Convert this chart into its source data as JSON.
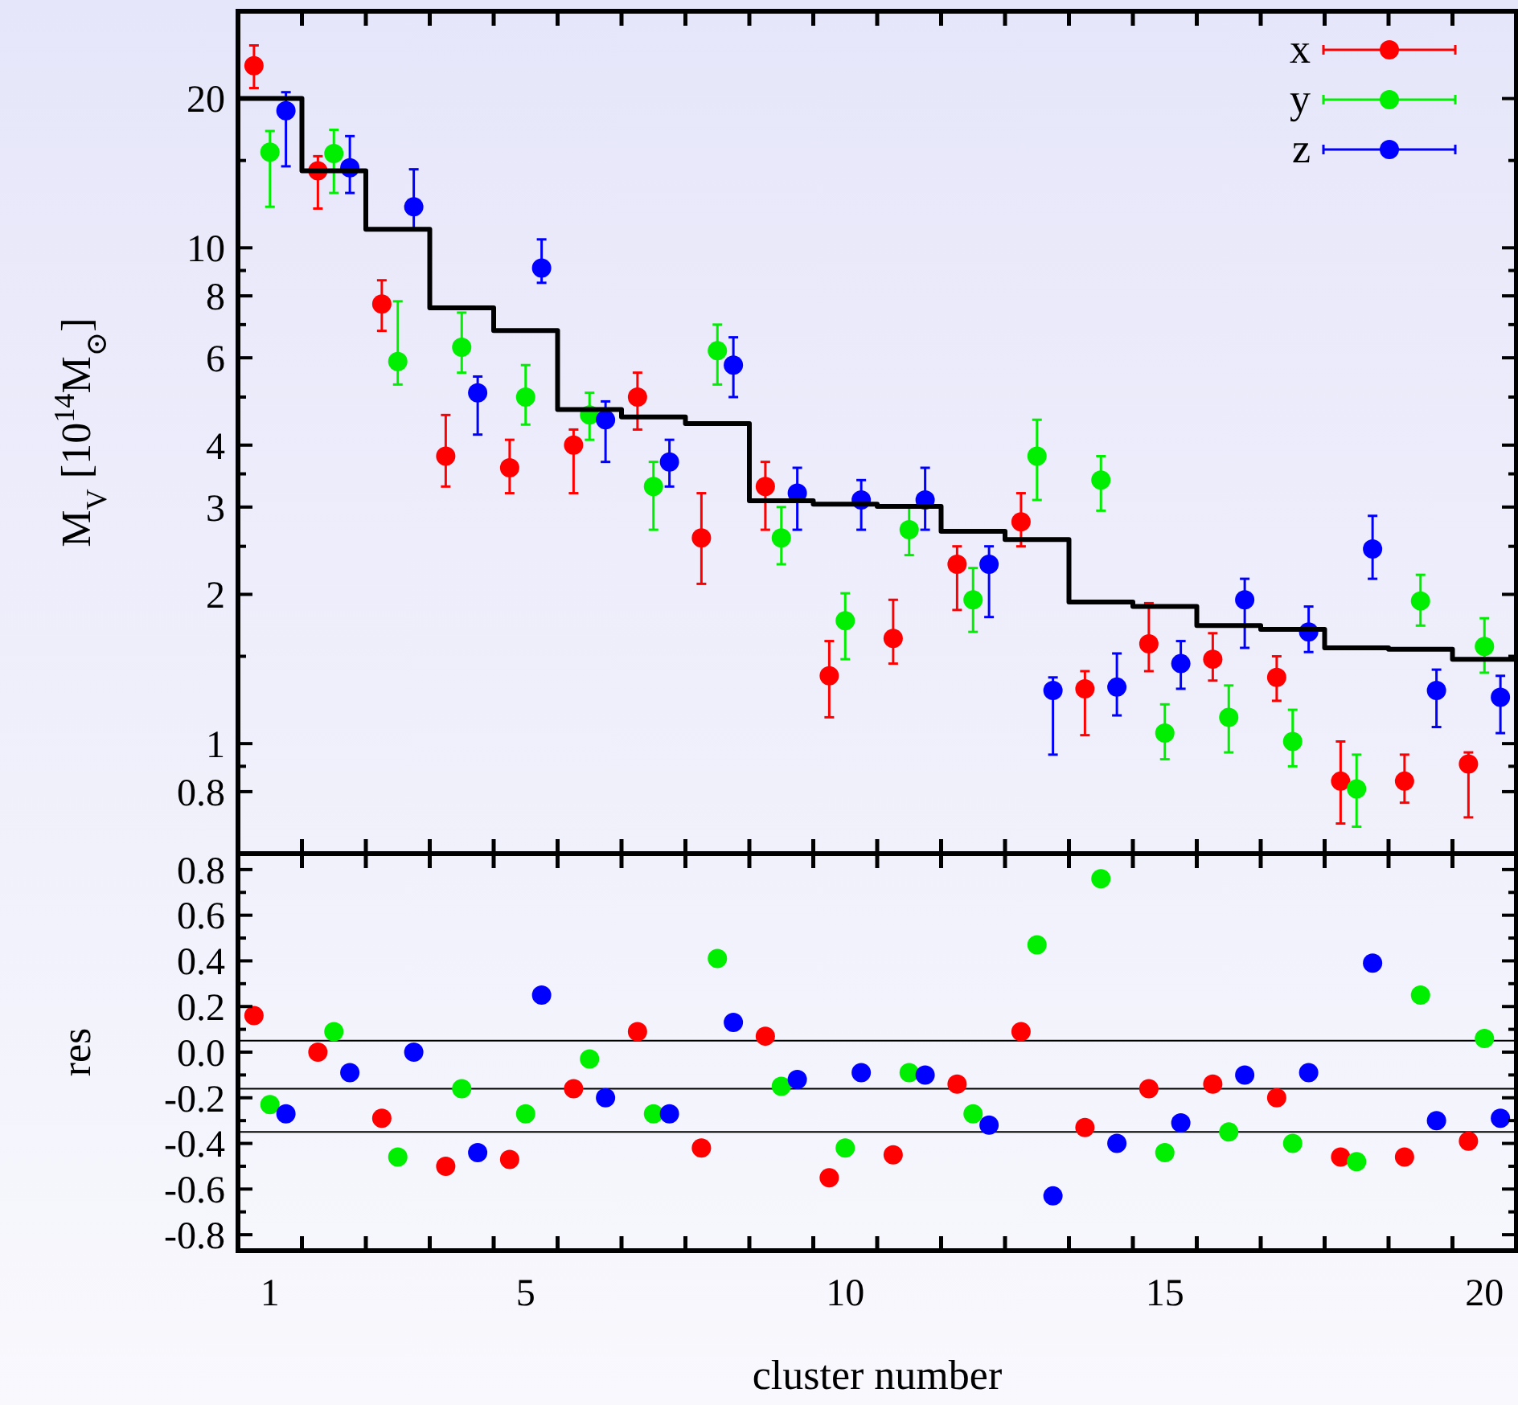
{
  "chart_data": [
    {
      "type": "scatter",
      "ylabel": "M$_{V}$ [10$^{14}$M$_{⊙}$]",
      "log": true,
      "legend": "top right",
      "marker": "circle",
      "tick_labels": "y",
      "xlim": [
        0.5,
        20.5
      ],
      "xticks": [
        {
          "value": 1.5,
          "label": null
        },
        {
          "value": 2.5,
          "label": null
        },
        {
          "value": 3.5,
          "label": null
        },
        {
          "value": 4.5,
          "label": null
        },
        {
          "value": 5.5,
          "label": null
        },
        {
          "value": 6.5,
          "label": null
        },
        {
          "value": 7.5,
          "label": null
        },
        {
          "value": 8.5,
          "label": null
        },
        {
          "value": 9.5,
          "label": null
        },
        {
          "value": 10.5,
          "label": null
        },
        {
          "value": 11.5,
          "label": null
        },
        {
          "value": 12.5,
          "label": null
        },
        {
          "value": 13.5,
          "label": null
        },
        {
          "value": 14.5,
          "label": null
        },
        {
          "value": 15.5,
          "label": null
        },
        {
          "value": 16.5,
          "label": null
        },
        {
          "value": 17.5,
          "label": null
        },
        {
          "value": 18.5,
          "label": null
        },
        {
          "value": 19.5,
          "label": null
        }
      ],
      "ylim": [
        0.6,
        30
      ],
      "yticks": [
        0.8,
        {
          "value": 0.9,
          "label": null
        },
        1,
        {
          "value": 1.5,
          "label": null
        },
        2,
        {
          "value": 2.5,
          "label": null
        },
        3,
        {
          "value": 3.5,
          "label": null
        },
        4,
        {
          "value": 5,
          "label": null
        },
        6,
        {
          "value": 7,
          "label": null
        },
        8,
        {
          "value": 9,
          "label": null
        },
        10,
        {
          "value": 15,
          "label": null
        },
        20
      ],
      "series": [
        {
          "name": "x",
          "color": "#ff0000",
          "x": [
            0.75,
            1.75,
            2.75,
            3.75,
            4.75,
            5.75,
            6.75,
            7.75,
            8.75,
            9.75,
            10.75,
            11.75,
            12.75,
            13.75,
            14.75,
            15.75,
            16.75,
            17.75,
            18.75,
            19.75
          ],
          "values": [
            23.3,
            14.3,
            7.7,
            3.8,
            3.6,
            4.0,
            5.0,
            2.6,
            3.3,
            1.37,
            1.63,
            2.3,
            2.8,
            1.29,
            1.59,
            1.48,
            1.36,
            0.84,
            0.84,
            0.91
          ],
          "errors": [
            [
              21.0,
              25.6
            ],
            [
              12.0,
              15.3
            ],
            [
              6.8,
              8.6
            ],
            [
              3.3,
              4.6
            ],
            [
              3.2,
              4.1
            ],
            [
              3.2,
              4.3
            ],
            [
              4.3,
              5.6
            ],
            [
              2.1,
              3.2
            ],
            [
              2.7,
              3.7
            ],
            [
              1.13,
              1.61
            ],
            [
              1.45,
              1.95
            ],
            [
              1.86,
              2.5
            ],
            [
              2.5,
              3.2
            ],
            [
              1.04,
              1.4
            ],
            [
              1.4,
              1.92
            ],
            [
              1.34,
              1.67
            ],
            [
              1.22,
              1.5
            ],
            [
              0.69,
              1.01
            ],
            [
              0.76,
              0.95
            ],
            [
              0.71,
              0.96
            ]
          ]
        },
        {
          "name": "y",
          "color": "#00ee00",
          "x": [
            1,
            2,
            3,
            4,
            5,
            6,
            7,
            8,
            9,
            10,
            11,
            12,
            13,
            14,
            15,
            16,
            17,
            18,
            19,
            20
          ],
          "values": [
            15.6,
            15.5,
            5.9,
            6.3,
            5.0,
            4.6,
            3.3,
            6.2,
            2.6,
            1.77,
            2.7,
            1.95,
            3.8,
            3.4,
            1.05,
            1.13,
            1.01,
            0.81,
            1.94,
            1.57
          ],
          "errors": [
            [
              12.1,
              17.2
            ],
            [
              12.9,
              17.3
            ],
            [
              5.3,
              7.8
            ],
            [
              5.6,
              7.4
            ],
            [
              4.4,
              5.8
            ],
            [
              4.1,
              5.1
            ],
            [
              2.7,
              3.7
            ],
            [
              5.3,
              7.0
            ],
            [
              2.3,
              3.0
            ],
            [
              1.48,
              2.01
            ],
            [
              2.4,
              3.0
            ],
            [
              1.68,
              2.26
            ],
            [
              3.1,
              4.5
            ],
            [
              2.95,
              3.8
            ],
            [
              0.93,
              1.2
            ],
            [
              0.96,
              1.31
            ],
            [
              0.9,
              1.17
            ],
            [
              0.68,
              0.95
            ],
            [
              1.73,
              2.19
            ],
            [
              1.39,
              1.79
            ]
          ]
        },
        {
          "name": "z",
          "color": "#0000ff",
          "x": [
            1.25,
            2.25,
            3.25,
            4.25,
            5.25,
            6.25,
            7.25,
            8.25,
            9.25,
            10.25,
            11.25,
            12.25,
            13.25,
            14.25,
            15.25,
            16.25,
            17.25,
            18.25,
            19.25,
            20.25
          ],
          "values": [
            18.9,
            14.5,
            12.1,
            5.1,
            9.1,
            4.5,
            3.7,
            5.8,
            3.2,
            3.1,
            3.1,
            2.3,
            1.28,
            1.3,
            1.45,
            1.95,
            1.68,
            2.47,
            1.28,
            1.24
          ],
          "errors": [
            [
              14.6,
              20.6
            ],
            [
              12.9,
              16.8
            ],
            [
              10.9,
              14.4
            ],
            [
              4.2,
              5.5
            ],
            [
              8.5,
              10.4
            ],
            [
              3.7,
              4.9
            ],
            [
              3.3,
              4.1
            ],
            [
              5.0,
              6.6
            ],
            [
              2.7,
              3.6
            ],
            [
              2.7,
              3.4
            ],
            [
              2.7,
              3.6
            ],
            [
              1.8,
              2.5
            ],
            [
              0.95,
              1.36
            ],
            [
              1.14,
              1.52
            ],
            [
              1.29,
              1.61
            ],
            [
              1.56,
              2.15
            ],
            [
              1.53,
              1.89
            ],
            [
              2.15,
              2.88
            ],
            [
              1.08,
              1.41
            ],
            [
              1.05,
              1.37
            ]
          ]
        },
        {
          "type": "step",
          "color": "#000000",
          "marker": "none",
          "x": [
            0.5,
            1.5,
            2.5,
            3.5,
            4.5,
            5.5,
            6.5,
            7.5,
            8.5,
            9.5,
            10.5,
            11.5,
            12.5,
            13.5,
            14.5,
            15.5,
            16.5,
            17.5,
            18.5,
            19.5,
            20.5
          ],
          "values": [
            20.0,
            14.3,
            10.9,
            7.57,
            6.81,
            4.72,
            4.56,
            4.42,
            3.09,
            3.04,
            3.01,
            2.68,
            2.58,
            1.93,
            1.89,
            1.73,
            1.7,
            1.56,
            1.55,
            1.48,
            1.48
          ]
        }
      ]
    },
    {
      "type": "scatter",
      "xlabel": "cluster number",
      "ylabel": "res",
      "marker": "circle",
      "xlim": [
        0.5,
        20.5
      ],
      "xticks": [
        1,
        {
          "value": 1.5,
          "label": null
        },
        {
          "value": 2.5,
          "label": null
        },
        {
          "value": 3.5,
          "label": null
        },
        {
          "value": 4.5,
          "label": null
        },
        5,
        {
          "value": 5.5,
          "label": null
        },
        {
          "value": 6.5,
          "label": null
        },
        {
          "value": 7.5,
          "label": null
        },
        {
          "value": 8.5,
          "label": null
        },
        {
          "value": 9.5,
          "label": null
        },
        10,
        {
          "value": 10.5,
          "label": null
        },
        {
          "value": 11.5,
          "label": null
        },
        {
          "value": 12.5,
          "label": null
        },
        {
          "value": 13.5,
          "label": null
        },
        {
          "value": 14.5,
          "label": null
        },
        15,
        {
          "value": 15.5,
          "label": null
        },
        {
          "value": 16.5,
          "label": null
        },
        {
          "value": 17.5,
          "label": null
        },
        {
          "value": 18.5,
          "label": null
        },
        {
          "value": 19.5,
          "label": null
        },
        20
      ],
      "ylim": [
        -0.87,
        0.87
      ],
      "yticks": [
        -0.8,
        {
          "value": -0.7,
          "label": null
        },
        -0.6,
        {
          "value": -0.5,
          "label": null
        },
        -0.4,
        {
          "value": -0.3,
          "label": null
        },
        -0.2,
        {
          "value": -0.1,
          "label": null
        },
        {
          "value": 0,
          "label": "0.0"
        },
        {
          "value": 0.1,
          "label": null
        },
        0.2,
        {
          "value": 0.3,
          "label": null
        },
        0.4,
        {
          "value": 0.5,
          "label": null
        },
        0.6,
        {
          "value": 0.7,
          "label": null
        },
        0.8
      ],
      "ref_lines": [
        {
          "axis": "y",
          "value": 0.05,
          "color": "#000000"
        },
        {
          "axis": "y",
          "value": -0.16,
          "color": "#000000"
        },
        {
          "axis": "y",
          "value": -0.35,
          "color": "#000000"
        }
      ],
      "series": [
        {
          "color": "#ff0000",
          "x": [
            0.75,
            1.75,
            2.75,
            3.75,
            4.75,
            5.75,
            6.75,
            7.75,
            8.75,
            9.75,
            10.75,
            11.75,
            12.75,
            13.75,
            14.75,
            15.75,
            16.75,
            17.75,
            18.75,
            19.75
          ],
          "values": [
            0.16,
            0.0,
            -0.29,
            -0.5,
            -0.47,
            -0.16,
            0.09,
            -0.42,
            0.07,
            -0.55,
            -0.45,
            -0.14,
            0.09,
            -0.33,
            -0.16,
            -0.14,
            -0.2,
            -0.46,
            -0.46,
            -0.39
          ]
        },
        {
          "color": "#00ee00",
          "x": [
            1,
            2,
            3,
            4,
            5,
            6,
            7,
            8,
            9,
            10,
            11,
            12,
            13,
            14,
            15,
            16,
            17,
            18,
            19,
            20
          ],
          "values": [
            -0.23,
            0.09,
            -0.46,
            -0.16,
            -0.27,
            -0.03,
            -0.27,
            0.41,
            -0.15,
            -0.42,
            -0.09,
            -0.27,
            0.47,
            0.76,
            -0.44,
            -0.35,
            -0.4,
            -0.48,
            0.25,
            0.06
          ]
        },
        {
          "color": "#0000ff",
          "x": [
            1.25,
            2.25,
            3.25,
            4.25,
            5.25,
            6.25,
            7.25,
            8.25,
            9.25,
            10.25,
            11.25,
            12.25,
            13.25,
            14.25,
            15.25,
            16.25,
            17.25,
            18.25,
            19.25,
            20.25
          ],
          "values": [
            -0.27,
            -0.09,
            0.0,
            -0.44,
            0.25,
            -0.2,
            -0.27,
            0.13,
            -0.12,
            -0.09,
            -0.1,
            -0.32,
            -0.63,
            -0.4,
            -0.31,
            -0.1,
            -0.09,
            0.39,
            -0.3,
            -0.29
          ]
        }
      ]
    }
  ]
}
